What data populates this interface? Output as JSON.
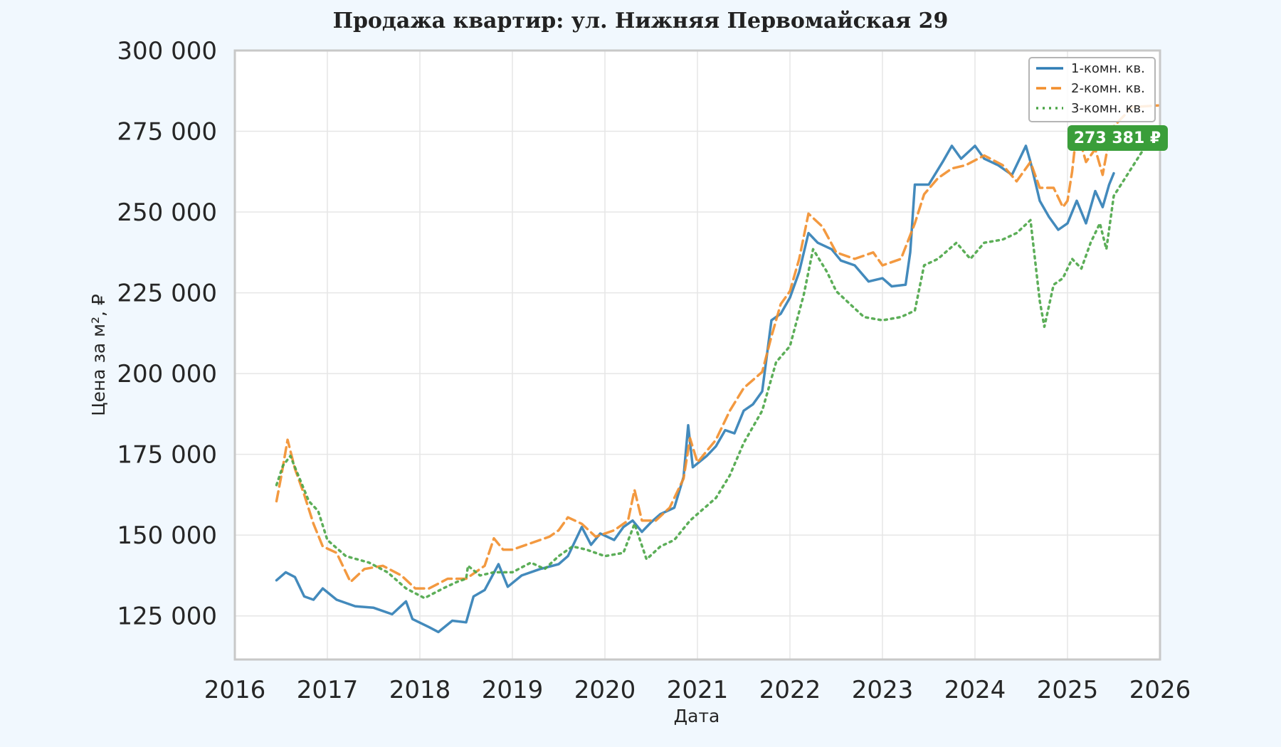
{
  "chart_data": {
    "type": "line",
    "title": "Продажа квартир: ул. Нижняя Первомайская 29",
    "xlabel": "Дата",
    "ylabel": "Цена за м², ₽",
    "xlim": [
      2016.0,
      2026.0
    ],
    "ylim": [
      111500,
      300000
    ],
    "x_ticks": [
      "2016",
      "2017",
      "2018",
      "2019",
      "2020",
      "2021",
      "2022",
      "2023",
      "2024",
      "2025",
      "2026"
    ],
    "y_ticks": [
      {
        "value": 125000,
        "label": "125 000"
      },
      {
        "value": 150000,
        "label": "150 000"
      },
      {
        "value": 175000,
        "label": "175 000"
      },
      {
        "value": 200000,
        "label": "200 000"
      },
      {
        "value": 225000,
        "label": "225 000"
      },
      {
        "value": 250000,
        "label": "250 000"
      },
      {
        "value": 275000,
        "label": "275 000"
      },
      {
        "value": 300000,
        "label": "300 000"
      }
    ],
    "grid": true,
    "legend_position": "top-right",
    "series": [
      {
        "name": "1-комн. кв.",
        "color": "#2f7db5",
        "style": "solid",
        "points": [
          [
            2016.45,
            136000
          ],
          [
            2016.55,
            138500
          ],
          [
            2016.65,
            137000
          ],
          [
            2016.75,
            131000
          ],
          [
            2016.85,
            130000
          ],
          [
            2016.95,
            133500
          ],
          [
            2017.1,
            130000
          ],
          [
            2017.3,
            128000
          ],
          [
            2017.5,
            127500
          ],
          [
            2017.7,
            125500
          ],
          [
            2017.85,
            129500
          ],
          [
            2017.92,
            124000
          ],
          [
            2018.1,
            121500
          ],
          [
            2018.2,
            120000
          ],
          [
            2018.35,
            123500
          ],
          [
            2018.5,
            123000
          ],
          [
            2018.58,
            131000
          ],
          [
            2018.7,
            133000
          ],
          [
            2018.85,
            141000
          ],
          [
            2018.95,
            134000
          ],
          [
            2019.1,
            137500
          ],
          [
            2019.3,
            139500
          ],
          [
            2019.5,
            141000
          ],
          [
            2019.6,
            143500
          ],
          [
            2019.75,
            152500
          ],
          [
            2019.85,
            147000
          ],
          [
            2019.95,
            150500
          ],
          [
            2020.1,
            148500
          ],
          [
            2020.2,
            152500
          ],
          [
            2020.3,
            154500
          ],
          [
            2020.4,
            151000
          ],
          [
            2020.5,
            154000
          ],
          [
            2020.6,
            156500
          ],
          [
            2020.75,
            158500
          ],
          [
            2020.85,
            168000
          ],
          [
            2020.9,
            184000
          ],
          [
            2020.95,
            171000
          ],
          [
            2021.1,
            174500
          ],
          [
            2021.2,
            177500
          ],
          [
            2021.3,
            182500
          ],
          [
            2021.4,
            181500
          ],
          [
            2021.5,
            188500
          ],
          [
            2021.6,
            190500
          ],
          [
            2021.7,
            194500
          ],
          [
            2021.8,
            216500
          ],
          [
            2021.9,
            218500
          ],
          [
            2022.0,
            223500
          ],
          [
            2022.1,
            231500
          ],
          [
            2022.2,
            243500
          ],
          [
            2022.3,
            240500
          ],
          [
            2022.45,
            238500
          ],
          [
            2022.55,
            235000
          ],
          [
            2022.7,
            233500
          ],
          [
            2022.85,
            228500
          ],
          [
            2023.0,
            229500
          ],
          [
            2023.1,
            227000
          ],
          [
            2023.25,
            227500
          ],
          [
            2023.3,
            237500
          ],
          [
            2023.35,
            258500
          ],
          [
            2023.5,
            258500
          ],
          [
            2023.65,
            265500
          ],
          [
            2023.75,
            270500
          ],
          [
            2023.85,
            266500
          ],
          [
            2024.0,
            270500
          ],
          [
            2024.1,
            266500
          ],
          [
            2024.25,
            264500
          ],
          [
            2024.4,
            261500
          ],
          [
            2024.55,
            270500
          ],
          [
            2024.6,
            265500
          ],
          [
            2024.7,
            253500
          ],
          [
            2024.8,
            248500
          ],
          [
            2024.9,
            244500
          ],
          [
            2025.0,
            246500
          ],
          [
            2025.1,
            253500
          ],
          [
            2025.2,
            246500
          ],
          [
            2025.3,
            256500
          ],
          [
            2025.38,
            251500
          ],
          [
            2025.45,
            258500
          ],
          [
            2025.5,
            262000
          ]
        ]
      },
      {
        "name": "2-комн. кв.",
        "color": "#f28e2b",
        "style": "dashed",
        "points": [
          [
            2016.45,
            160500
          ],
          [
            2016.5,
            168000
          ],
          [
            2016.57,
            179500
          ],
          [
            2016.65,
            170500
          ],
          [
            2016.75,
            162500
          ],
          [
            2016.85,
            153500
          ],
          [
            2016.95,
            146500
          ],
          [
            2017.1,
            144500
          ],
          [
            2017.25,
            135500
          ],
          [
            2017.4,
            139500
          ],
          [
            2017.6,
            140500
          ],
          [
            2017.8,
            137500
          ],
          [
            2017.95,
            133500
          ],
          [
            2018.1,
            133500
          ],
          [
            2018.3,
            136500
          ],
          [
            2018.5,
            136500
          ],
          [
            2018.7,
            140500
          ],
          [
            2018.8,
            149000
          ],
          [
            2018.9,
            145500
          ],
          [
            2019.0,
            145500
          ],
          [
            2019.2,
            147500
          ],
          [
            2019.4,
            149500
          ],
          [
            2019.5,
            151500
          ],
          [
            2019.6,
            155500
          ],
          [
            2019.75,
            153500
          ],
          [
            2019.9,
            149500
          ],
          [
            2020.1,
            151500
          ],
          [
            2020.25,
            154500
          ],
          [
            2020.32,
            164000
          ],
          [
            2020.4,
            154500
          ],
          [
            2020.55,
            154500
          ],
          [
            2020.7,
            158500
          ],
          [
            2020.85,
            167500
          ],
          [
            2020.92,
            180000
          ],
          [
            2021.0,
            172500
          ],
          [
            2021.2,
            179500
          ],
          [
            2021.35,
            188500
          ],
          [
            2021.5,
            195500
          ],
          [
            2021.7,
            200500
          ],
          [
            2021.8,
            211500
          ],
          [
            2021.9,
            221500
          ],
          [
            2022.0,
            225500
          ],
          [
            2022.1,
            235500
          ],
          [
            2022.2,
            249500
          ],
          [
            2022.35,
            245500
          ],
          [
            2022.5,
            237500
          ],
          [
            2022.7,
            235500
          ],
          [
            2022.9,
            237500
          ],
          [
            2023.0,
            233500
          ],
          [
            2023.2,
            235500
          ],
          [
            2023.35,
            246500
          ],
          [
            2023.45,
            255500
          ],
          [
            2023.6,
            260500
          ],
          [
            2023.75,
            263500
          ],
          [
            2023.9,
            264500
          ],
          [
            2024.1,
            267500
          ],
          [
            2024.3,
            264500
          ],
          [
            2024.45,
            259500
          ],
          [
            2024.6,
            265500
          ],
          [
            2024.7,
            257500
          ],
          [
            2024.85,
            257500
          ],
          [
            2024.95,
            251500
          ],
          [
            2025.0,
            253500
          ],
          [
            2025.05,
            262500
          ],
          [
            2025.1,
            275500
          ],
          [
            2025.2,
            265500
          ],
          [
            2025.3,
            269500
          ],
          [
            2025.38,
            261500
          ],
          [
            2025.45,
            272500
          ],
          [
            2025.5,
            276500
          ],
          [
            2025.7,
            282500
          ],
          [
            2025.98,
            283000
          ]
        ]
      },
      {
        "name": "3-комн. кв.",
        "color": "#4aa546",
        "style": "dotted",
        "points": [
          [
            2016.45,
            165500
          ],
          [
            2016.52,
            171500
          ],
          [
            2016.6,
            174500
          ],
          [
            2016.7,
            167500
          ],
          [
            2016.8,
            160500
          ],
          [
            2016.9,
            157500
          ],
          [
            2017.0,
            148500
          ],
          [
            2017.2,
            143500
          ],
          [
            2017.45,
            141500
          ],
          [
            2017.65,
            138500
          ],
          [
            2017.85,
            133500
          ],
          [
            2018.05,
            130500
          ],
          [
            2018.25,
            133500
          ],
          [
            2018.4,
            135500
          ],
          [
            2018.5,
            136500
          ],
          [
            2018.52,
            140500
          ],
          [
            2018.65,
            137500
          ],
          [
            2018.8,
            138500
          ],
          [
            2019.0,
            138500
          ],
          [
            2019.2,
            141500
          ],
          [
            2019.35,
            139500
          ],
          [
            2019.5,
            143500
          ],
          [
            2019.65,
            146500
          ],
          [
            2019.8,
            145500
          ],
          [
            2020.0,
            143500
          ],
          [
            2020.2,
            144500
          ],
          [
            2020.32,
            153500
          ],
          [
            2020.45,
            142500
          ],
          [
            2020.6,
            146500
          ],
          [
            2020.75,
            148500
          ],
          [
            2020.92,
            154500
          ],
          [
            2021.0,
            156500
          ],
          [
            2021.2,
            161500
          ],
          [
            2021.35,
            168500
          ],
          [
            2021.5,
            178500
          ],
          [
            2021.7,
            188500
          ],
          [
            2021.85,
            203500
          ],
          [
            2022.0,
            208500
          ],
          [
            2022.15,
            224500
          ],
          [
            2022.25,
            238500
          ],
          [
            2022.4,
            231500
          ],
          [
            2022.5,
            225500
          ],
          [
            2022.65,
            221500
          ],
          [
            2022.8,
            217500
          ],
          [
            2023.0,
            216500
          ],
          [
            2023.2,
            217500
          ],
          [
            2023.35,
            219500
          ],
          [
            2023.45,
            233500
          ],
          [
            2023.6,
            235500
          ],
          [
            2023.8,
            240500
          ],
          [
            2023.95,
            235500
          ],
          [
            2024.1,
            240500
          ],
          [
            2024.3,
            241500
          ],
          [
            2024.45,
            243500
          ],
          [
            2024.6,
            247500
          ],
          [
            2024.7,
            222500
          ],
          [
            2024.75,
            214500
          ],
          [
            2024.85,
            227500
          ],
          [
            2024.95,
            229500
          ],
          [
            2025.05,
            235500
          ],
          [
            2025.15,
            232500
          ],
          [
            2025.25,
            240500
          ],
          [
            2025.35,
            246500
          ],
          [
            2025.42,
            238500
          ],
          [
            2025.5,
            255000
          ],
          [
            2025.98,
            276500
          ]
        ]
      }
    ],
    "annotation": {
      "text": "273 381 ₽",
      "x": 2025.5,
      "y": 273381,
      "color": "#3a9e3a"
    }
  }
}
